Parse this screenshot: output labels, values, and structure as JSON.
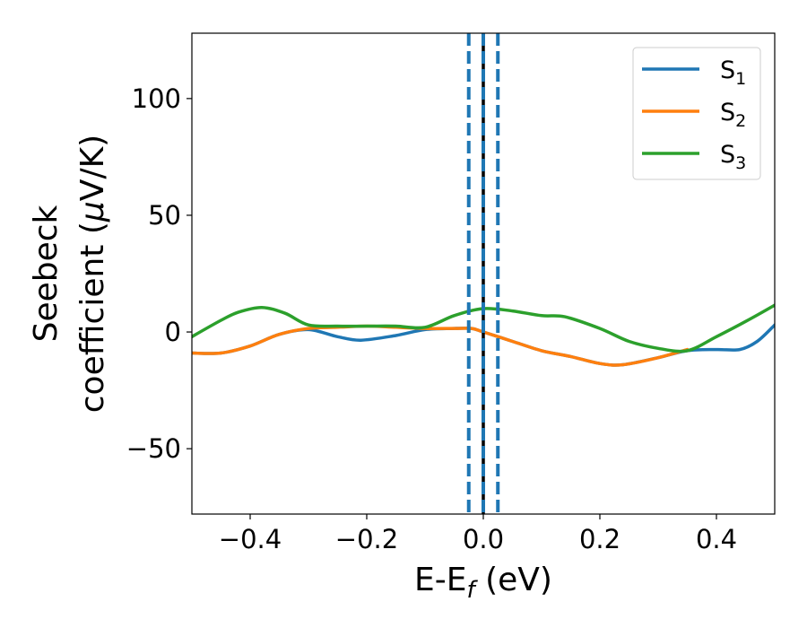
{
  "chart_data": {
    "type": "line",
    "xlabel": {
      "main": "E-E",
      "sub": "f",
      "tail": " (eV)"
    },
    "ylabel": {
      "line1": "Seebeck",
      "line2_pre": "coefficient  (",
      "mu": "μ",
      "line2_post": "V/K)"
    },
    "xlim": [
      -0.5,
      0.5
    ],
    "ylim": [
      -78,
      128
    ],
    "xticks": [
      -0.4,
      -0.2,
      0.0,
      0.2,
      0.4
    ],
    "xtick_labels": [
      "−0.4",
      "−0.2",
      "0.0",
      "0.2",
      "0.4"
    ],
    "yticks": [
      -50,
      0,
      50,
      100
    ],
    "ytick_labels": [
      "−50",
      "0",
      "50",
      "100"
    ],
    "grid": false,
    "legend_position": "top-right",
    "vlines": [
      {
        "x": 0.0,
        "color": "#000000",
        "style": "solid"
      },
      {
        "x": -0.025,
        "color": "#1f77b4",
        "style": "dashed"
      },
      {
        "x": 0.0,
        "color": "#1f77b4",
        "style": "dashed"
      },
      {
        "x": 0.025,
        "color": "#1f77b4",
        "style": "dashed"
      }
    ],
    "series": [
      {
        "name": "S",
        "sub": "1",
        "color": "#1f77b4",
        "x": [
          -0.5,
          -0.45,
          -0.4,
          -0.35,
          -0.3,
          -0.25,
          -0.21,
          -0.15,
          -0.1,
          -0.05,
          -0.02,
          0.0,
          0.05,
          0.1,
          0.15,
          0.2,
          0.24,
          0.3,
          0.35,
          0.4,
          0.44,
          0.47,
          0.5
        ],
        "y": [
          -9,
          -9,
          -6,
          -1,
          1,
          -2,
          -3.5,
          -1.5,
          1,
          1.5,
          1.5,
          0,
          -4,
          -8,
          -10.5,
          -13.5,
          -14,
          -11,
          -8,
          -7.5,
          -7.5,
          -4,
          3
        ]
      },
      {
        "name": "S",
        "sub": "2",
        "color": "#ff7f0e",
        "x": [
          -0.5,
          -0.45,
          -0.4,
          -0.35,
          -0.3,
          -0.25,
          -0.2,
          -0.15,
          -0.1,
          -0.05,
          -0.02,
          0.0,
          0.05,
          0.1,
          0.15,
          0.2,
          0.24,
          0.3,
          0.35
        ],
        "y": [
          -9,
          -9,
          -6,
          -1,
          1.5,
          2,
          2.5,
          2,
          1.5,
          1.5,
          1.5,
          0,
          -4,
          -8,
          -10.5,
          -13.5,
          -14,
          -11,
          -7.5
        ]
      },
      {
        "name": "S",
        "sub": "3",
        "color": "#2ca02c",
        "x": [
          -0.5,
          -0.45,
          -0.42,
          -0.38,
          -0.34,
          -0.3,
          -0.25,
          -0.2,
          -0.15,
          -0.1,
          -0.05,
          0.0,
          0.05,
          0.1,
          0.14,
          0.2,
          0.25,
          0.3,
          0.35,
          0.4,
          0.45,
          0.5
        ],
        "y": [
          -2,
          5,
          8.5,
          10.5,
          8,
          3,
          2.5,
          2.5,
          2.5,
          2,
          7,
          10,
          9,
          7,
          6.5,
          1.5,
          -4,
          -7,
          -8,
          -2,
          4.5,
          11.5
        ]
      }
    ]
  }
}
